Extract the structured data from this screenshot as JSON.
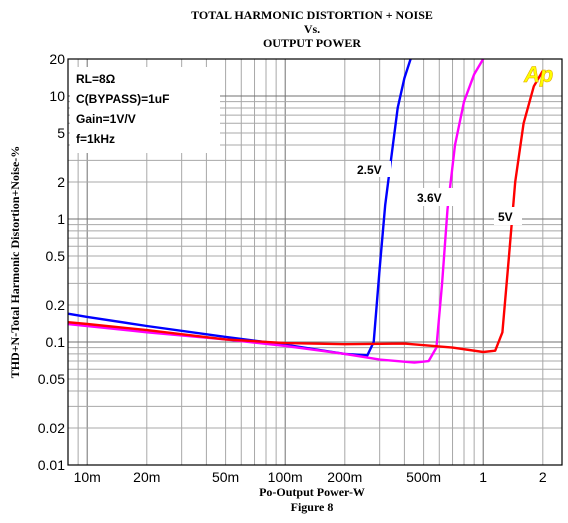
{
  "chart_data": {
    "type": "line",
    "title": [
      "TOTAL HARMONIC DISTORTION + NOISE",
      "Vs.",
      "OUTPUT POWER"
    ],
    "xlabel": "Po-Output Power-W",
    "ylabel": "THD+N-Total Harmonic Distortion+Noise-%",
    "figure_label": "Figure 8",
    "x_scale": "log",
    "y_scale": "log",
    "xlim": [
      0.008,
      2.5
    ],
    "ylim": [
      0.01,
      20
    ],
    "grid": true,
    "x_ticks": [
      {
        "value": 0.01,
        "label": "10m"
      },
      {
        "value": 0.02,
        "label": "20m"
      },
      {
        "value": 0.05,
        "label": "50m"
      },
      {
        "value": 0.1,
        "label": "100m"
      },
      {
        "value": 0.2,
        "label": "200m"
      },
      {
        "value": 0.5,
        "label": "500m"
      },
      {
        "value": 1,
        "label": "1"
      },
      {
        "value": 2,
        "label": "2"
      }
    ],
    "y_ticks": [
      {
        "value": 0.01,
        "label": "0.01"
      },
      {
        "value": 0.02,
        "label": "0.02"
      },
      {
        "value": 0.05,
        "label": "0.05"
      },
      {
        "value": 0.1,
        "label": "0.1"
      },
      {
        "value": 0.2,
        "label": "0.2"
      },
      {
        "value": 0.5,
        "label": "0.5"
      },
      {
        "value": 1,
        "label": "1"
      },
      {
        "value": 2,
        "label": "2"
      },
      {
        "value": 5,
        "label": "5"
      },
      {
        "value": 10,
        "label": "10"
      },
      {
        "value": 20,
        "label": "20"
      }
    ],
    "conditions": [
      "RL=8Ω",
      "C(BYPASS)=1uF",
      "Gain=1V/V",
      "f=1kHz"
    ],
    "series": [
      {
        "name": "2.5V",
        "color": "#0000ff",
        "points": [
          [
            0.008,
            0.17
          ],
          [
            0.01,
            0.16
          ],
          [
            0.02,
            0.135
          ],
          [
            0.05,
            0.11
          ],
          [
            0.1,
            0.095
          ],
          [
            0.2,
            0.08
          ],
          [
            0.26,
            0.078
          ],
          [
            0.28,
            0.1
          ],
          [
            0.3,
            0.4
          ],
          [
            0.32,
            1.3
          ],
          [
            0.35,
            4
          ],
          [
            0.37,
            8
          ],
          [
            0.4,
            14
          ],
          [
            0.43,
            20
          ]
        ]
      },
      {
        "name": "3.6V",
        "color": "#ff00ff",
        "points": [
          [
            0.008,
            0.14
          ],
          [
            0.01,
            0.135
          ],
          [
            0.02,
            0.12
          ],
          [
            0.05,
            0.105
          ],
          [
            0.1,
            0.093
          ],
          [
            0.2,
            0.08
          ],
          [
            0.3,
            0.072
          ],
          [
            0.45,
            0.068
          ],
          [
            0.53,
            0.07
          ],
          [
            0.58,
            0.09
          ],
          [
            0.62,
            0.3
          ],
          [
            0.66,
            1.2
          ],
          [
            0.72,
            4
          ],
          [
            0.8,
            9
          ],
          [
            0.9,
            15
          ],
          [
            1.0,
            20
          ]
        ]
      },
      {
        "name": "5V",
        "color": "#ff0000",
        "points": [
          [
            0.008,
            0.145
          ],
          [
            0.01,
            0.14
          ],
          [
            0.02,
            0.125
          ],
          [
            0.05,
            0.105
          ],
          [
            0.1,
            0.098
          ],
          [
            0.2,
            0.096
          ],
          [
            0.4,
            0.097
          ],
          [
            0.7,
            0.09
          ],
          [
            1.0,
            0.083
          ],
          [
            1.15,
            0.085
          ],
          [
            1.25,
            0.12
          ],
          [
            1.35,
            0.5
          ],
          [
            1.45,
            2
          ],
          [
            1.6,
            6
          ],
          [
            1.8,
            12
          ],
          [
            2.0,
            16
          ]
        ]
      }
    ]
  },
  "logo_text": "Ap",
  "logo_color": "#ffff00"
}
